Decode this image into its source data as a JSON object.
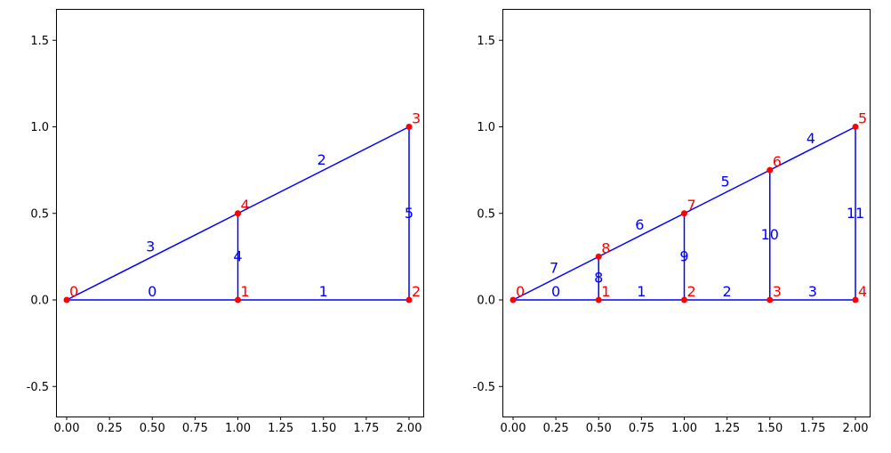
{
  "figure": {
    "background": "#ffffff",
    "node_color": "#ff0000",
    "edge_color": "#0000ff",
    "axis_color": "#000000"
  },
  "chart_data": [
    {
      "type": "scatter",
      "subtype": "node-edge-graph",
      "title": "",
      "xlabel": "",
      "ylabel": "",
      "xlim": [
        -0.06,
        2.08
      ],
      "ylim": [
        -0.67,
        1.68
      ],
      "grid": false,
      "legend": "none",
      "xticks": {
        "values": [
          0,
          0.25,
          0.5,
          0.75,
          1,
          1.25,
          1.5,
          1.75,
          2
        ],
        "labels": [
          "0.00",
          "0.25",
          "0.50",
          "0.75",
          "1.00",
          "1.25",
          "1.50",
          "1.75",
          "2.00"
        ]
      },
      "yticks": {
        "values": [
          -0.5,
          0,
          0.5,
          1,
          1.5
        ],
        "labels": [
          "-0.5",
          "0.0",
          "0.5",
          "1.0",
          "1.5"
        ]
      },
      "nodes": [
        {
          "id": "0",
          "x": 0,
          "y": 0
        },
        {
          "id": "1",
          "x": 1,
          "y": 0
        },
        {
          "id": "2",
          "x": 2,
          "y": 0
        },
        {
          "id": "3",
          "x": 2,
          "y": 1
        },
        {
          "id": "4",
          "x": 1,
          "y": 0.5
        }
      ],
      "edges": [
        {
          "id": "0",
          "x1": 0,
          "y1": 0,
          "x2": 1,
          "y2": 0
        },
        {
          "id": "1",
          "x1": 1,
          "y1": 0,
          "x2": 2,
          "y2": 0
        },
        {
          "id": "2",
          "x1": 1,
          "y1": 0.5,
          "x2": 2,
          "y2": 1
        },
        {
          "id": "3",
          "x1": 0,
          "y1": 0,
          "x2": 1,
          "y2": 0.5
        },
        {
          "id": "4",
          "x1": 1,
          "y1": 0,
          "x2": 1,
          "y2": 0.5
        },
        {
          "id": "5",
          "x1": 2,
          "y1": 0,
          "x2": 2,
          "y2": 1
        }
      ]
    },
    {
      "type": "scatter",
      "subtype": "node-edge-graph",
      "title": "",
      "xlabel": "",
      "ylabel": "",
      "xlim": [
        -0.06,
        2.08
      ],
      "ylim": [
        -0.67,
        1.68
      ],
      "grid": false,
      "legend": "none",
      "xticks": {
        "values": [
          0,
          0.25,
          0.5,
          0.75,
          1,
          1.25,
          1.5,
          1.75,
          2
        ],
        "labels": [
          "0.00",
          "0.25",
          "0.50",
          "0.75",
          "1.00",
          "1.25",
          "1.50",
          "1.75",
          "2.00"
        ]
      },
      "yticks": {
        "values": [
          -0.5,
          0,
          0.5,
          1,
          1.5
        ],
        "labels": [
          "-0.5",
          "0.0",
          "0.5",
          "1.0",
          "1.5"
        ]
      },
      "nodes": [
        {
          "id": "0",
          "x": 0,
          "y": 0
        },
        {
          "id": "1",
          "x": 0.5,
          "y": 0
        },
        {
          "id": "2",
          "x": 1,
          "y": 0
        },
        {
          "id": "3",
          "x": 1.5,
          "y": 0
        },
        {
          "id": "4",
          "x": 2,
          "y": 0
        },
        {
          "id": "5",
          "x": 2,
          "y": 1
        },
        {
          "id": "6",
          "x": 1.5,
          "y": 0.75
        },
        {
          "id": "7",
          "x": 1,
          "y": 0.5
        },
        {
          "id": "8",
          "x": 0.5,
          "y": 0.25
        }
      ],
      "edges": [
        {
          "id": "0",
          "x1": 0,
          "y1": 0,
          "x2": 0.5,
          "y2": 0
        },
        {
          "id": "1",
          "x1": 0.5,
          "y1": 0,
          "x2": 1,
          "y2": 0
        },
        {
          "id": "2",
          "x1": 1,
          "y1": 0,
          "x2": 1.5,
          "y2": 0
        },
        {
          "id": "3",
          "x1": 1.5,
          "y1": 0,
          "x2": 2,
          "y2": 0
        },
        {
          "id": "4",
          "x1": 1.5,
          "y1": 0.75,
          "x2": 2,
          "y2": 1
        },
        {
          "id": "5",
          "x1": 1,
          "y1": 0.5,
          "x2": 1.5,
          "y2": 0.75
        },
        {
          "id": "6",
          "x1": 0.5,
          "y1": 0.25,
          "x2": 1,
          "y2": 0.5
        },
        {
          "id": "7",
          "x1": 0,
          "y1": 0,
          "x2": 0.5,
          "y2": 0.25
        },
        {
          "id": "8",
          "x1": 0.5,
          "y1": 0,
          "x2": 0.5,
          "y2": 0.25
        },
        {
          "id": "9",
          "x1": 1,
          "y1": 0,
          "x2": 1,
          "y2": 0.5
        },
        {
          "id": "10",
          "x1": 1.5,
          "y1": 0,
          "x2": 1.5,
          "y2": 0.75
        },
        {
          "id": "11",
          "x1": 2,
          "y1": 0,
          "x2": 2,
          "y2": 1
        }
      ]
    }
  ]
}
